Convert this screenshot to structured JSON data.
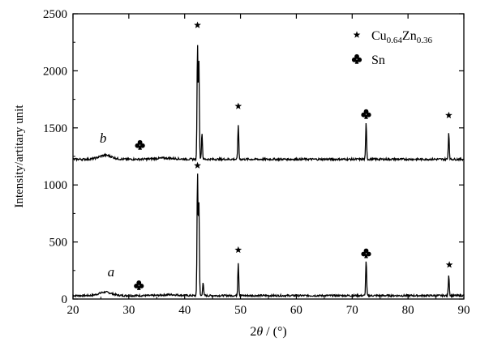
{
  "chart_data": {
    "type": "line",
    "xlabel_parts": [
      "2",
      "θ",
      " / (°)"
    ],
    "ylabel": "Intensity/artitary unit",
    "xlim": [
      20,
      90
    ],
    "ylim": [
      0,
      2500
    ],
    "xticks": [
      20,
      30,
      40,
      50,
      60,
      70,
      80,
      90
    ],
    "yticks": [
      0,
      500,
      1000,
      1500,
      2000,
      2500
    ],
    "grid": false,
    "legend": {
      "position": "top-right",
      "entries": [
        {
          "marker": "star-icon",
          "parts": [
            {
              "text": "Cu",
              "sub": false
            },
            {
              "text": "0.64",
              "sub": true
            },
            {
              "text": "Zn",
              "sub": false
            },
            {
              "text": "0.36",
              "sub": true
            }
          ]
        },
        {
          "marker": "club-icon",
          "parts": [
            {
              "text": "Sn",
              "sub": false
            }
          ]
        }
      ]
    },
    "series": [
      {
        "name": "a",
        "baseline": 30,
        "noise": 8,
        "humps": [
          {
            "x": 25.8,
            "h": 30,
            "w": 1.6
          },
          {
            "x": 37.5,
            "h": 8,
            "w": 2.0
          }
        ],
        "peaks": [
          {
            "x": 42.3,
            "y": 1110
          },
          {
            "x": 42.55,
            "y": 850
          },
          {
            "x": 43.3,
            "y": 150
          },
          {
            "x": 49.6,
            "y": 320
          },
          {
            "x": 72.5,
            "y": 340
          },
          {
            "x": 87.3,
            "y": 215
          }
        ],
        "markers": [
          {
            "type": "club-icon",
            "x": 31.8,
            "y": 120
          },
          {
            "type": "star-icon",
            "x": 42.3,
            "y": 1170
          },
          {
            "type": "star-icon",
            "x": 49.6,
            "y": 430
          },
          {
            "type": "club-icon",
            "x": 72.5,
            "y": 400
          },
          {
            "type": "star-icon",
            "x": 87.4,
            "y": 300
          }
        ],
        "label": {
          "text": "a",
          "x": 26.8,
          "y": 200
        }
      },
      {
        "name": "b",
        "baseline": 1225,
        "noise": 9,
        "humps": [
          {
            "x": 25.8,
            "h": 35,
            "w": 1.6
          },
          {
            "x": 36.5,
            "h": 10,
            "w": 2.5
          }
        ],
        "peaks": [
          {
            "x": 42.3,
            "y": 2225
          },
          {
            "x": 42.55,
            "y": 2080
          },
          {
            "x": 43.1,
            "y": 1460
          },
          {
            "x": 49.6,
            "y": 1530
          },
          {
            "x": 72.5,
            "y": 1545
          },
          {
            "x": 87.3,
            "y": 1460
          }
        ],
        "markers": [
          {
            "type": "club-icon",
            "x": 32.0,
            "y": 1350
          },
          {
            "type": "star-icon",
            "x": 42.3,
            "y": 2400
          },
          {
            "type": "star-icon",
            "x": 49.6,
            "y": 1690
          },
          {
            "type": "club-icon",
            "x": 72.5,
            "y": 1620
          },
          {
            "type": "star-icon",
            "x": 87.3,
            "y": 1610
          }
        ],
        "label": {
          "text": "b",
          "x": 25.4,
          "y": 1370
        }
      }
    ]
  }
}
